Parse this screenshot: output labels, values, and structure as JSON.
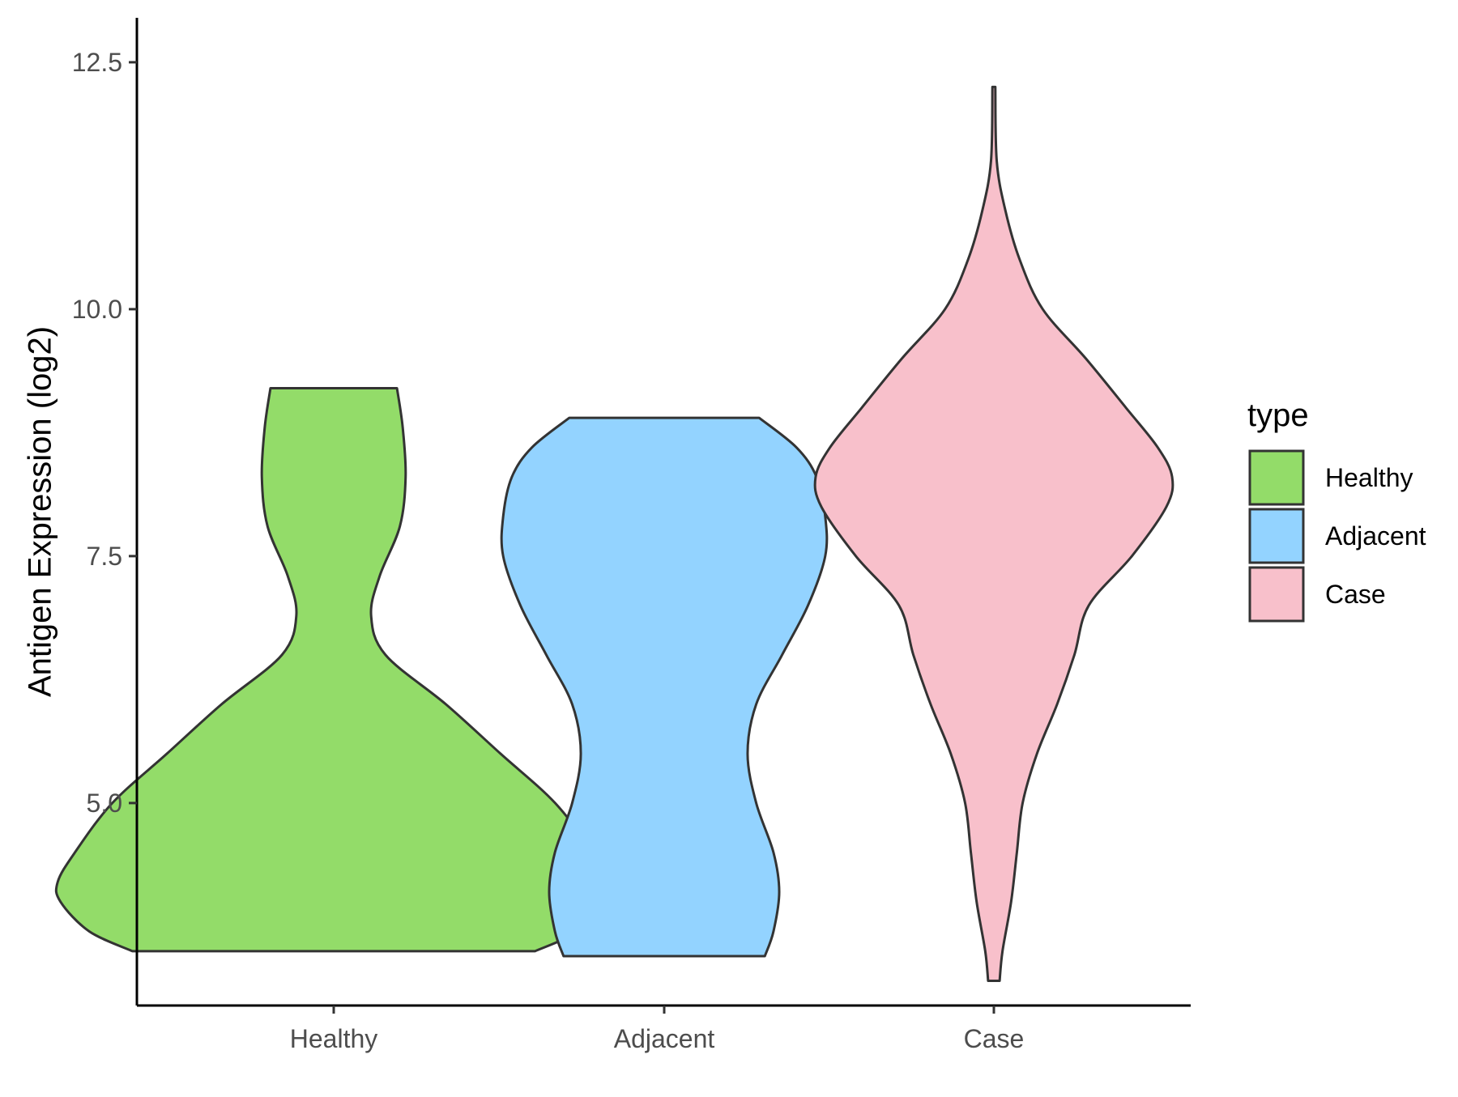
{
  "chart_data": {
    "type": "violin",
    "title": "",
    "xlabel": "",
    "ylabel": "Antigen Expression (log2)",
    "ylim": [
      2.95,
      12.95
    ],
    "yticks": [
      5.0,
      7.5,
      10.0,
      12.5
    ],
    "ytick_labels": [
      "5.0",
      "7.5",
      "10.0",
      "12.5"
    ],
    "grid": false,
    "categories": [
      "Healthy",
      "Adjacent",
      "Case"
    ],
    "legend": {
      "title": "type",
      "placement": "right",
      "entries": [
        {
          "label": "Healthy",
          "color": "#93dc69"
        },
        {
          "label": "Adjacent",
          "color": "#93d3ff"
        },
        {
          "label": "Case",
          "color": "#f8c0cb"
        }
      ]
    },
    "series": [
      {
        "category": "Healthy",
        "color": "#93dc69",
        "min": 3.5,
        "max": 9.2,
        "profile": [
          {
            "y": 3.5,
            "density": 0.7
          },
          {
            "y": 3.7,
            "density": 0.85
          },
          {
            "y": 4.0,
            "density": 0.95
          },
          {
            "y": 4.2,
            "density": 0.96
          },
          {
            "y": 4.5,
            "density": 0.9
          },
          {
            "y": 5.0,
            "density": 0.77
          },
          {
            "y": 5.5,
            "density": 0.58
          },
          {
            "y": 6.0,
            "density": 0.39
          },
          {
            "y": 6.5,
            "density": 0.18
          },
          {
            "y": 6.9,
            "density": 0.13
          },
          {
            "y": 7.3,
            "density": 0.16
          },
          {
            "y": 7.8,
            "density": 0.23
          },
          {
            "y": 8.3,
            "density": 0.25
          },
          {
            "y": 8.8,
            "density": 0.24
          },
          {
            "y": 9.2,
            "density": 0.22
          }
        ]
      },
      {
        "category": "Adjacent",
        "color": "#93d3ff",
        "min": 3.45,
        "max": 8.9,
        "profile": [
          {
            "y": 3.45,
            "density": 0.35
          },
          {
            "y": 3.7,
            "density": 0.38
          },
          {
            "y": 4.1,
            "density": 0.4
          },
          {
            "y": 4.5,
            "density": 0.38
          },
          {
            "y": 5.0,
            "density": 0.32
          },
          {
            "y": 5.5,
            "density": 0.29
          },
          {
            "y": 6.0,
            "density": 0.32
          },
          {
            "y": 6.5,
            "density": 0.41
          },
          {
            "y": 7.0,
            "density": 0.5
          },
          {
            "y": 7.5,
            "density": 0.56
          },
          {
            "y": 7.9,
            "density": 0.56
          },
          {
            "y": 8.3,
            "density": 0.53
          },
          {
            "y": 8.6,
            "density": 0.46
          },
          {
            "y": 8.9,
            "density": 0.33
          }
        ]
      },
      {
        "category": "Case",
        "color": "#f8c0cb",
        "min": 3.2,
        "max": 12.25,
        "profile": [
          {
            "y": 3.2,
            "density": 0.02
          },
          {
            "y": 3.5,
            "density": 0.03
          },
          {
            "y": 4.0,
            "density": 0.06
          },
          {
            "y": 4.5,
            "density": 0.08
          },
          {
            "y": 5.0,
            "density": 0.1
          },
          {
            "y": 5.5,
            "density": 0.15
          },
          {
            "y": 6.0,
            "density": 0.22
          },
          {
            "y": 6.5,
            "density": 0.28
          },
          {
            "y": 7.0,
            "density": 0.33
          },
          {
            "y": 7.5,
            "density": 0.48
          },
          {
            "y": 8.0,
            "density": 0.6
          },
          {
            "y": 8.3,
            "density": 0.62
          },
          {
            "y": 8.6,
            "density": 0.57
          },
          {
            "y": 9.0,
            "density": 0.46
          },
          {
            "y": 9.5,
            "density": 0.32
          },
          {
            "y": 10.0,
            "density": 0.17
          },
          {
            "y": 10.5,
            "density": 0.09
          },
          {
            "y": 11.0,
            "density": 0.04
          },
          {
            "y": 11.5,
            "density": 0.01
          },
          {
            "y": 12.25,
            "density": 0.005
          }
        ]
      }
    ]
  }
}
